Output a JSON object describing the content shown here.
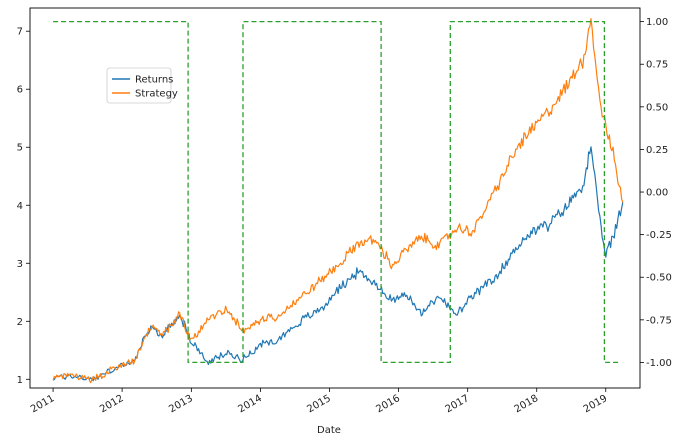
{
  "chart_data": {
    "type": "line",
    "xlabel": "Date",
    "ylabel": "",
    "x_ticks": [
      "2011",
      "2012",
      "2013",
      "2014",
      "2015",
      "2016",
      "2017",
      "2018",
      "2019"
    ],
    "ylim_left": [
      0.85,
      7.4
    ],
    "ylim_right": [
      -1.15,
      1.08
    ],
    "y_ticks_left": [
      "1",
      "2",
      "3",
      "4",
      "5",
      "6",
      "7"
    ],
    "y_ticks_right": [
      "-1.00",
      "-0.75",
      "-0.50",
      "-0.25",
      "0.00",
      "0.25",
      "0.50",
      "0.75",
      "1.00"
    ],
    "legend": {
      "position": "upper-left",
      "entries": [
        "Returns",
        "Strategy"
      ]
    },
    "grid": false,
    "series": [
      {
        "name": "Returns",
        "axis": "left",
        "color": "#1f77b4",
        "points": [
          [
            "2011-01-01",
            1.02
          ],
          [
            "2011-04-01",
            1.06
          ],
          [
            "2011-08-01",
            1.0
          ],
          [
            "2011-12-01",
            1.2
          ],
          [
            "2012-03-01",
            1.3
          ],
          [
            "2012-06-01",
            1.9
          ],
          [
            "2012-08-01",
            1.75
          ],
          [
            "2012-11-01",
            2.12
          ],
          [
            "2013-01-01",
            1.65
          ],
          [
            "2013-04-01",
            1.28
          ],
          [
            "2013-07-01",
            1.45
          ],
          [
            "2013-10-01",
            1.35
          ],
          [
            "2014-01-01",
            1.6
          ],
          [
            "2014-04-01",
            1.68
          ],
          [
            "2014-08-01",
            2.0
          ],
          [
            "2014-12-01",
            2.25
          ],
          [
            "2015-03-01",
            2.6
          ],
          [
            "2015-06-01",
            2.85
          ],
          [
            "2015-09-01",
            2.65
          ],
          [
            "2015-12-01",
            2.35
          ],
          [
            "2016-02-01",
            2.5
          ],
          [
            "2016-05-01",
            2.12
          ],
          [
            "2016-08-01",
            2.45
          ],
          [
            "2016-11-01",
            2.1
          ],
          [
            "2017-02-01",
            2.45
          ],
          [
            "2017-06-01",
            2.75
          ],
          [
            "2017-10-01",
            3.35
          ],
          [
            "2018-01-01",
            3.6
          ],
          [
            "2018-03-01",
            3.65
          ],
          [
            "2018-06-01",
            3.95
          ],
          [
            "2018-09-01",
            4.35
          ],
          [
            "2018-10-15",
            5.0
          ],
          [
            "2018-12-01",
            3.7
          ],
          [
            "2019-01-01",
            3.15
          ],
          [
            "2019-02-15",
            3.5
          ],
          [
            "2019-04-01",
            4.05
          ]
        ]
      },
      {
        "name": "Strategy",
        "axis": "left",
        "color": "#ff7f0e",
        "points": [
          [
            "2011-01-01",
            1.02
          ],
          [
            "2011-04-01",
            1.06
          ],
          [
            "2011-08-01",
            1.0
          ],
          [
            "2011-12-01",
            1.2
          ],
          [
            "2012-03-01",
            1.3
          ],
          [
            "2012-06-01",
            1.9
          ],
          [
            "2012-08-01",
            1.75
          ],
          [
            "2012-11-01",
            2.12
          ],
          [
            "2013-01-01",
            1.65
          ],
          [
            "2013-04-01",
            2.05
          ],
          [
            "2013-07-01",
            2.2
          ],
          [
            "2013-10-01",
            1.85
          ],
          [
            "2014-01-01",
            2.0
          ],
          [
            "2014-04-01",
            2.1
          ],
          [
            "2014-08-01",
            2.4
          ],
          [
            "2014-12-01",
            2.75
          ],
          [
            "2015-03-01",
            3.0
          ],
          [
            "2015-06-01",
            3.35
          ],
          [
            "2015-09-01",
            3.4
          ],
          [
            "2015-12-01",
            2.95
          ],
          [
            "2016-02-01",
            3.2
          ],
          [
            "2016-05-01",
            3.45
          ],
          [
            "2016-08-01",
            3.3
          ],
          [
            "2016-11-01",
            3.6
          ],
          [
            "2017-02-01",
            3.55
          ],
          [
            "2017-06-01",
            4.3
          ],
          [
            "2017-10-01",
            5.05
          ],
          [
            "2018-01-01",
            5.4
          ],
          [
            "2018-03-01",
            5.6
          ],
          [
            "2018-06-01",
            6.0
          ],
          [
            "2018-09-01",
            6.5
          ],
          [
            "2018-10-15",
            7.2
          ],
          [
            "2018-12-01",
            5.8
          ],
          [
            "2019-01-01",
            5.35
          ],
          [
            "2019-02-15",
            4.8
          ],
          [
            "2019-04-01",
            4.05
          ]
        ]
      },
      {
        "name": "",
        "axis": "right",
        "color": "#2ca02c",
        "style": "dashed",
        "points": [
          [
            "2011-01-01",
            1.0
          ],
          [
            "2012-12-15",
            1.0
          ],
          [
            "2012-12-15",
            -1.0
          ],
          [
            "2013-10-01",
            -1.0
          ],
          [
            "2013-10-01",
            1.0
          ],
          [
            "2015-10-01",
            1.0
          ],
          [
            "2015-10-01",
            -1.0
          ],
          [
            "2016-10-01",
            -1.0
          ],
          [
            "2016-10-01",
            1.0
          ],
          [
            "2018-12-25",
            1.0
          ],
          [
            "2018-12-25",
            -1.0
          ],
          [
            "2019-03-20",
            -1.0
          ]
        ]
      }
    ]
  }
}
